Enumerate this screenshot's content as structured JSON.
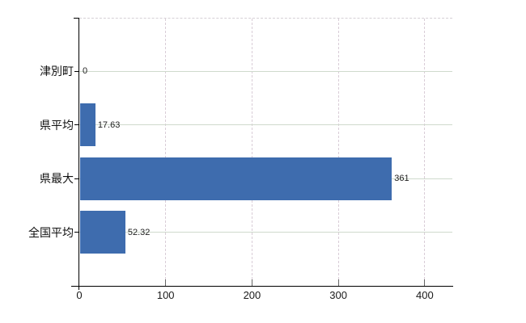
{
  "chart_data": {
    "type": "bar",
    "orientation": "horizontal",
    "title": "",
    "xlabel": "",
    "ylabel": "",
    "categories": [
      "津別町",
      "県平均",
      "県最大",
      "全国平均"
    ],
    "values": [
      0,
      17.63,
      361,
      52.32
    ],
    "value_labels": [
      "0",
      "17.63",
      "361",
      "52.32"
    ],
    "x_tick_values": [
      0,
      100,
      200,
      300,
      400
    ],
    "x_tick_labels": [
      "0",
      "100",
      "200",
      "300",
      "400"
    ],
    "xlim": [
      0,
      432
    ],
    "grid": "on",
    "legend": "none"
  },
  "colors": {
    "bar": "#3e6cae",
    "axis": "#000000",
    "h_gridline": "#cfdacd",
    "v_gridline": "#d9cdd7",
    "top_border": "#d6d0d6",
    "inner_tick": "#666666",
    "text": "#1a1a1a"
  }
}
